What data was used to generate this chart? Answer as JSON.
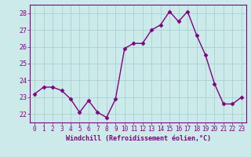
{
  "x": [
    0,
    1,
    2,
    3,
    4,
    5,
    6,
    7,
    8,
    9,
    10,
    11,
    12,
    13,
    14,
    15,
    16,
    17,
    18,
    19,
    20,
    21,
    22,
    23
  ],
  "y": [
    23.2,
    23.6,
    23.6,
    23.4,
    22.9,
    22.1,
    22.8,
    22.1,
    21.8,
    22.9,
    25.9,
    26.2,
    26.2,
    27.0,
    27.3,
    28.1,
    27.5,
    28.1,
    26.7,
    25.5,
    23.8,
    22.6,
    22.6,
    23.0
  ],
  "line_color": "#800080",
  "marker": "D",
  "marker_size": 2.5,
  "bg_color": "#cdeaea",
  "grid_color": "#a0cdcd",
  "xlabel": "Windchill (Refroidissement éolien,°C)",
  "xlabel_color": "#800080",
  "tick_color": "#800080",
  "ylim": [
    21.5,
    28.5
  ],
  "yticks": [
    22,
    23,
    24,
    25,
    26,
    27,
    28
  ],
  "xticks": [
    0,
    1,
    2,
    3,
    4,
    5,
    6,
    7,
    8,
    9,
    10,
    11,
    12,
    13,
    14,
    15,
    16,
    17,
    18,
    19,
    20,
    21,
    22,
    23
  ],
  "spine_color": "#800080",
  "line_width": 1.0,
  "tick_fontsize": 5.5,
  "xlabel_fontsize": 6.0
}
